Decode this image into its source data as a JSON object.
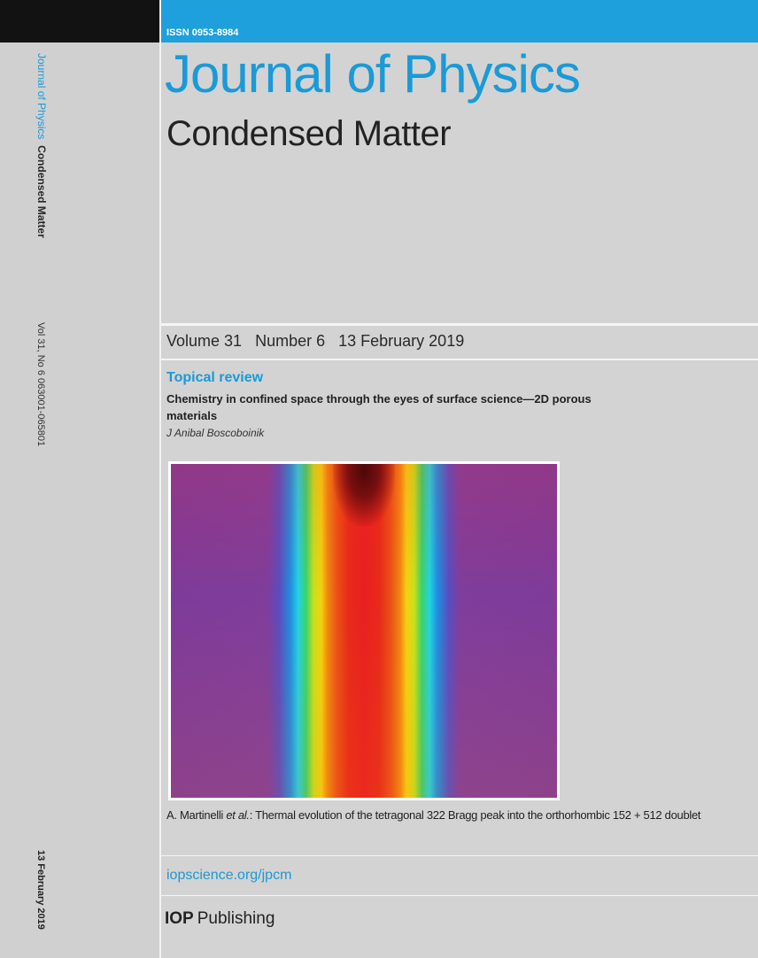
{
  "spine": {
    "journal_part1": "Journal of Physics",
    "journal_part2": "Condensed Matter",
    "volume_info": "Vol 31, No 6  063001-065801",
    "date": "13 February 2019"
  },
  "cover": {
    "issn": "ISSN 0953-8984",
    "title": "Journal of Physics",
    "subtitle": "Condensed Matter",
    "issue": {
      "volume": "Volume 31",
      "number": "Number 6",
      "date": "13 February 2019"
    },
    "section_label": "Topical review",
    "article_title": "Chemistry in confined space through the eyes of surface science—2D porous materials",
    "article_author": "J Anibal Boscoboinik",
    "caption": {
      "author": "A. Martinelli ",
      "etal": "et al.",
      "text": ": Thermal evolution of the tetragonal 322 Bragg peak into the orthorhombic 152 + 512 doublet"
    },
    "url": "iopscience.org/jpcm",
    "publisher_bold": "IOP",
    "publisher_rest": "Publishing"
  },
  "colors": {
    "accent_blue": "#1a9ad6",
    "top_bar_blue": "#1ea0dc",
    "background_gray": "#d3d3d3"
  }
}
